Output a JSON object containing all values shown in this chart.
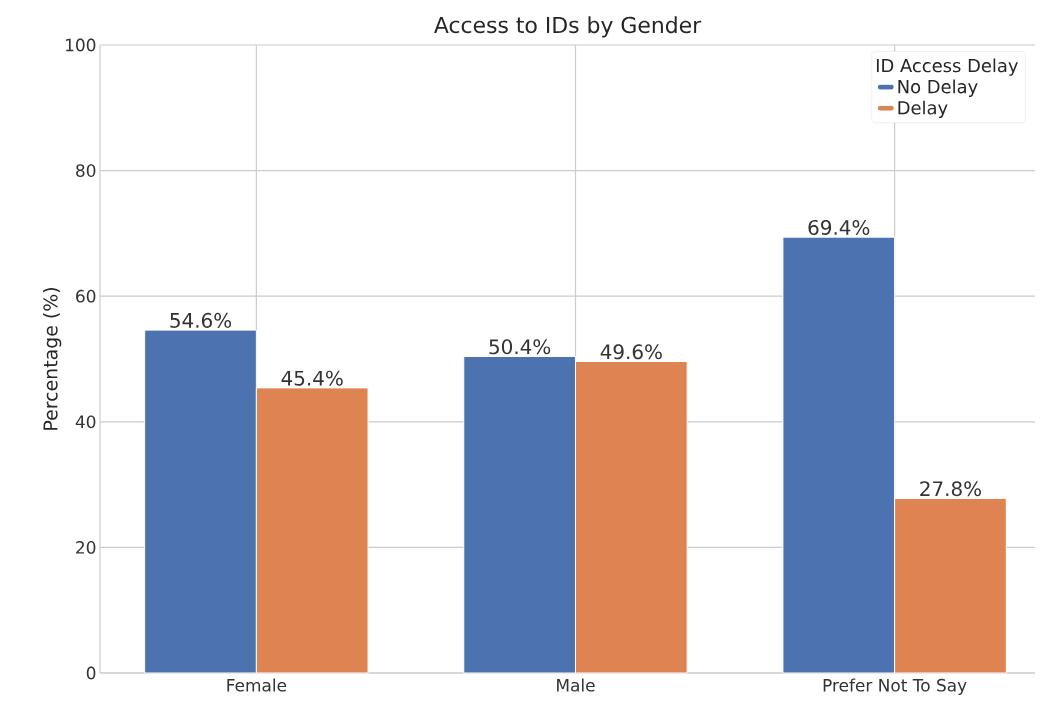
{
  "chart_data": {
    "type": "bar",
    "title": "Access to IDs by Gender",
    "ylabel": "Percentage (%)",
    "legend_title": "ID Access Delay",
    "categories": [
      "Female",
      "Male",
      "Prefer Not To Say"
    ],
    "series": [
      {
        "name": "No Delay",
        "color": "#4c72b0",
        "values": [
          54.6,
          50.4,
          69.4
        ],
        "value_labels": [
          "54.6%",
          "50.4%",
          "69.4%"
        ]
      },
      {
        "name": "Delay",
        "color": "#dd8452",
        "values": [
          45.4,
          49.6,
          27.8
        ],
        "value_labels": [
          "45.4%",
          "49.6%",
          "27.8%"
        ]
      }
    ],
    "ylim": [
      0,
      100
    ],
    "yticks": [
      0,
      20,
      40,
      60,
      80,
      100
    ],
    "grid": true,
    "legend": "top right"
  }
}
